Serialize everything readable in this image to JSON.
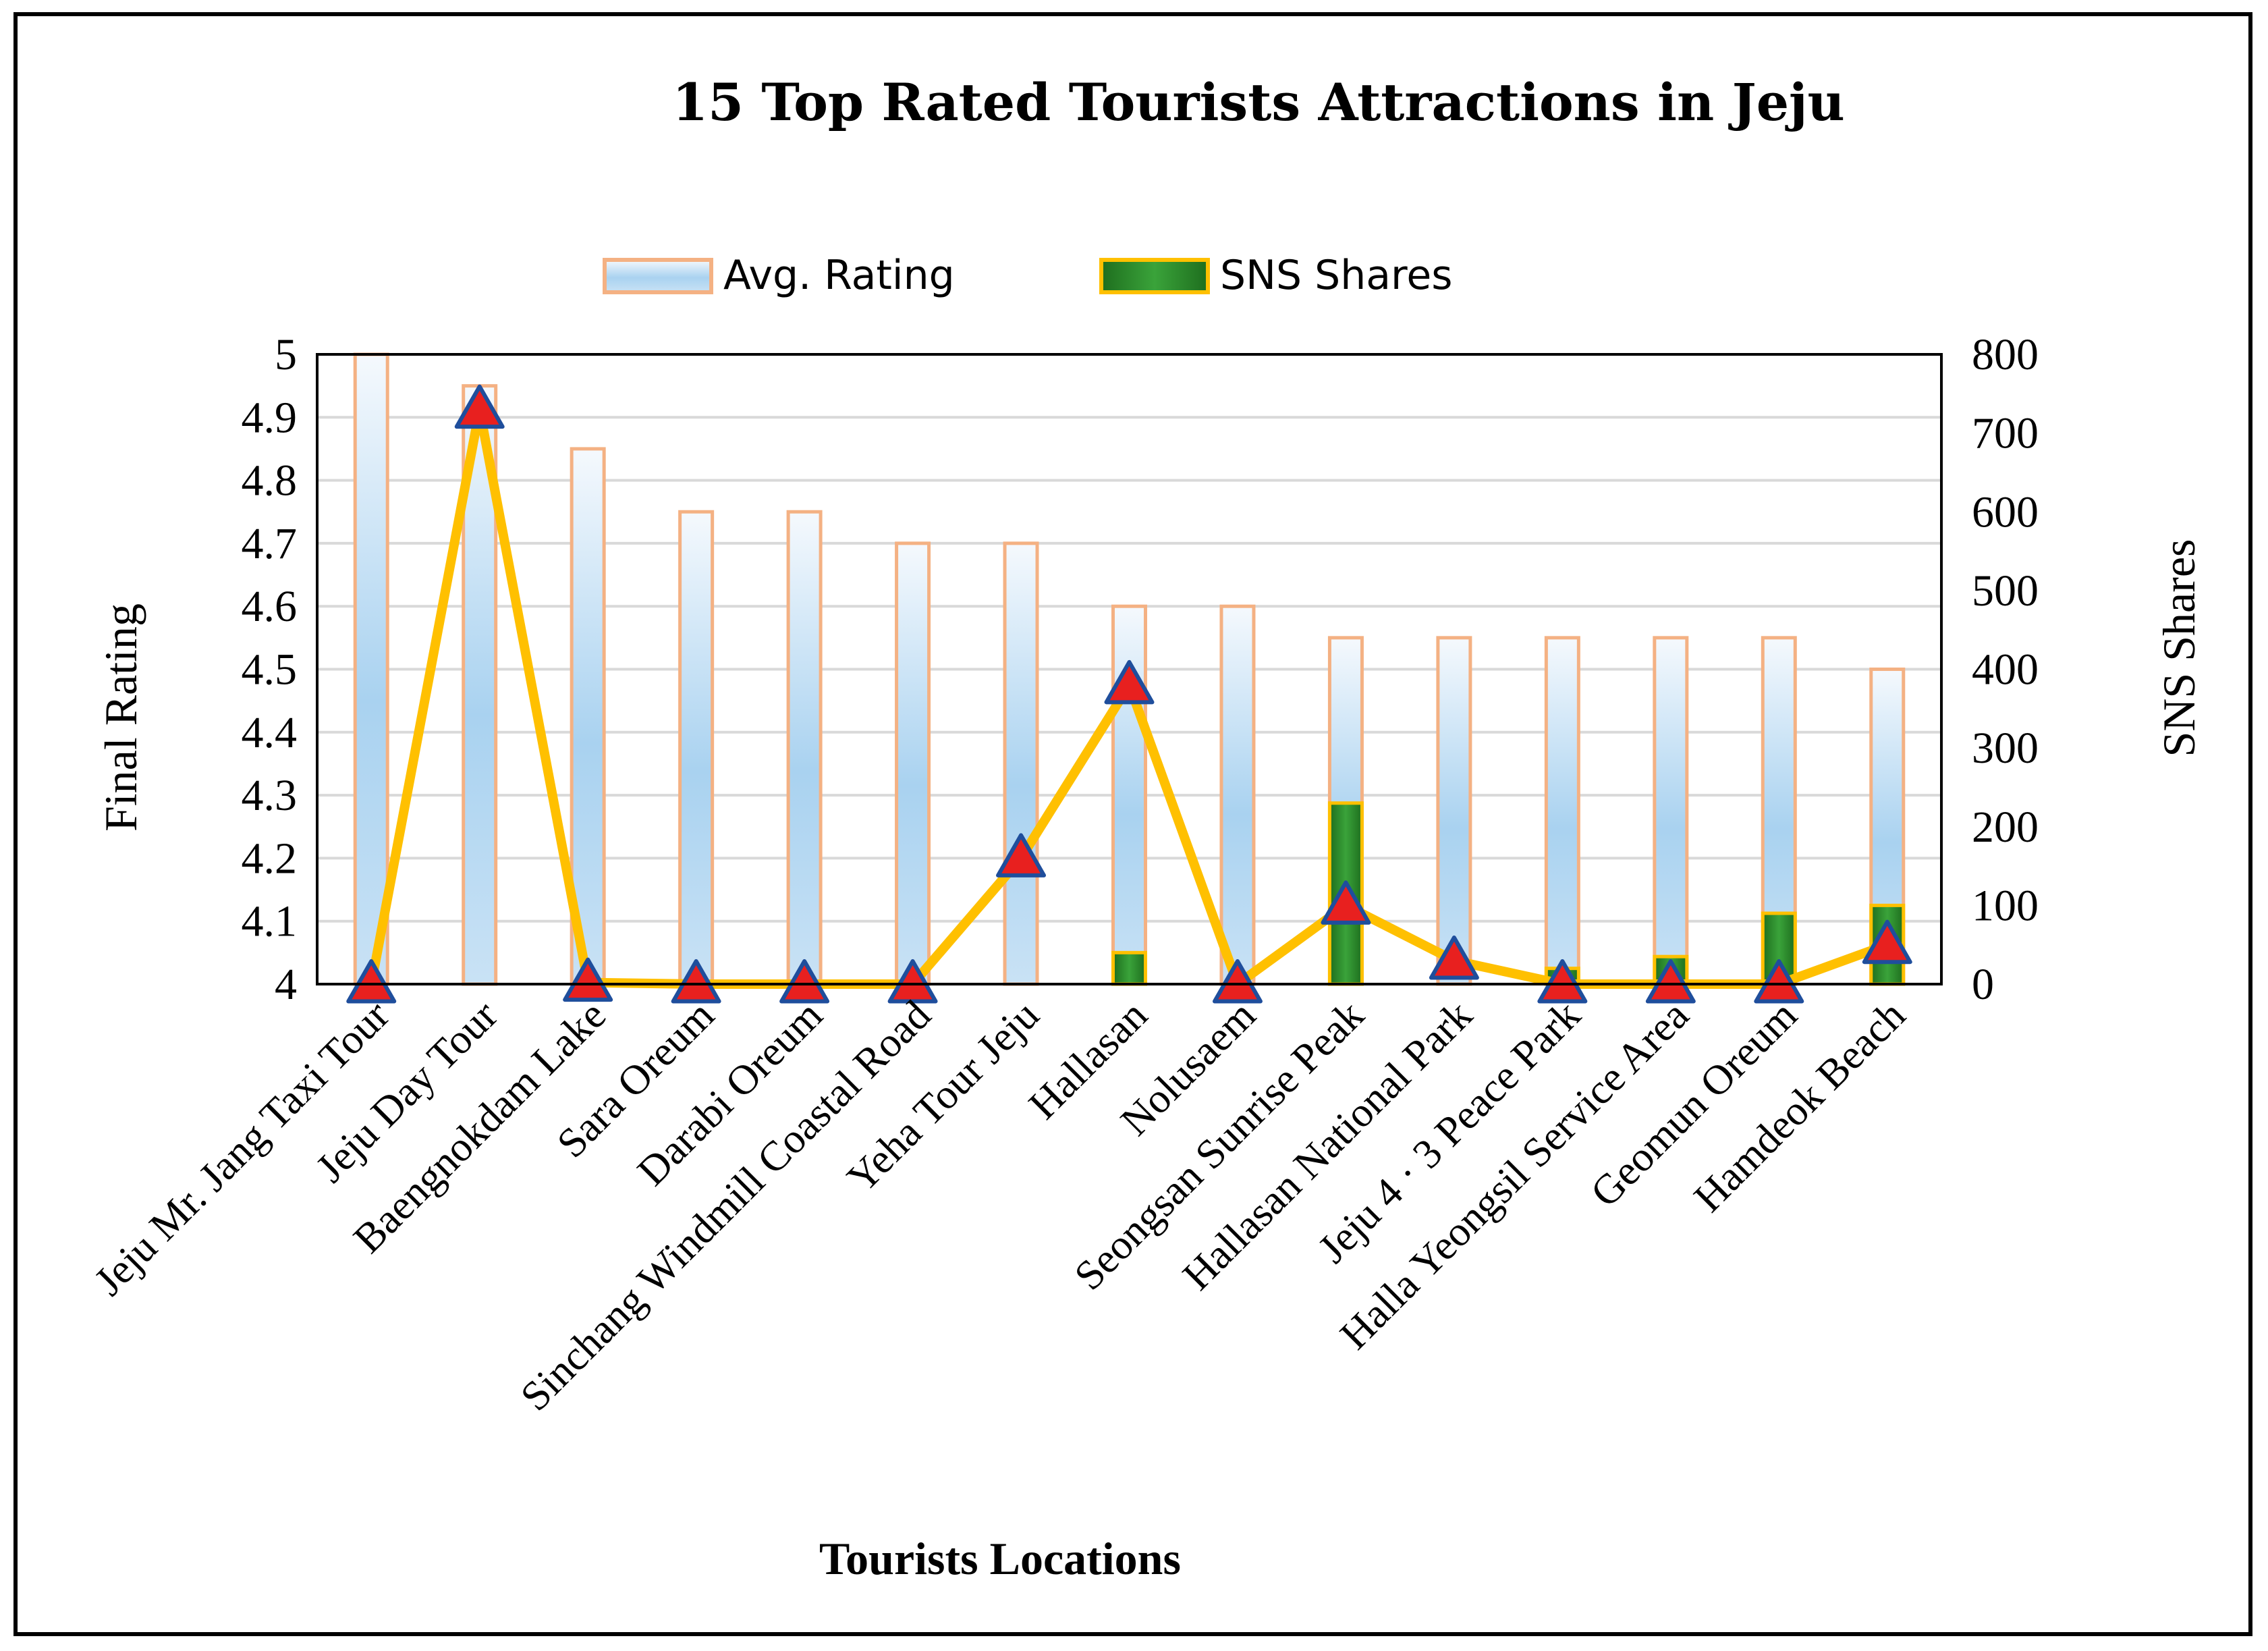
{
  "chart_data": {
    "type": "bar",
    "title": "15 Top Rated Tourists Attractions in Jeju",
    "xlabel": "Tourists Locations",
    "ylabel": "Final Rating",
    "y2label": "SNS Shares",
    "ylim": [
      4,
      5
    ],
    "y2lim": [
      0,
      800
    ],
    "yticks": [
      "4",
      "4.1",
      "4.2",
      "4.3",
      "4.4",
      "4.5",
      "4.6",
      "4.7",
      "4.8",
      "4.9",
      "5"
    ],
    "y2ticks": [
      "0",
      "100",
      "200",
      "300",
      "400",
      "500",
      "600",
      "700",
      "800"
    ],
    "legend": [
      "Avg. Rating",
      "SNS Shares"
    ],
    "categories": [
      "Jeju Mr. Jang Taxi Tour",
      "Jeju Day Tour",
      "Baengnokdam Lake",
      "Sara Oreum",
      "Darabi Oreum",
      "Sinchang Windmill Coastal Road",
      "Yeha Tour Jeju",
      "Hallasan",
      "Nolusaem",
      "Seongsan Sunrise Peak",
      "Hallasan National Park",
      "Jeju 4 · 3 Peace Park",
      "Halla Yeongsil Service Area",
      "Geomun Oreum",
      "Hamdeok Beach"
    ],
    "series": [
      {
        "name": "Avg. Rating",
        "axis": "left",
        "values": [
          5.0,
          4.95,
          4.85,
          4.75,
          4.75,
          4.7,
          4.7,
          4.6,
          4.6,
          4.55,
          4.55,
          4.55,
          4.55,
          4.55,
          4.5
        ]
      },
      {
        "name": "SNS Shares",
        "axis": "right",
        "values": [
          0,
          0,
          0,
          0,
          0,
          0,
          0,
          40,
          0,
          230,
          0,
          20,
          35,
          90,
          100
        ]
      },
      {
        "name": "SNS Shares trend",
        "axis": "right",
        "style": "line",
        "values": [
          0,
          730,
          2,
          0,
          0,
          0,
          160,
          380,
          0,
          100,
          30,
          0,
          0,
          0,
          50
        ]
      }
    ],
    "colors": {
      "rating_outline": "#f4b183",
      "rating_fill_top": "#f3f8fd",
      "rating_fill_mid": "#a9d2f0",
      "sns_fill": "#2e8b2e",
      "sns_outline": "#ffc000",
      "line": "#ffc000",
      "marker_fill": "#e8201f",
      "marker_outline": "#1f4e9c",
      "grid": "#d9d9d9"
    }
  }
}
